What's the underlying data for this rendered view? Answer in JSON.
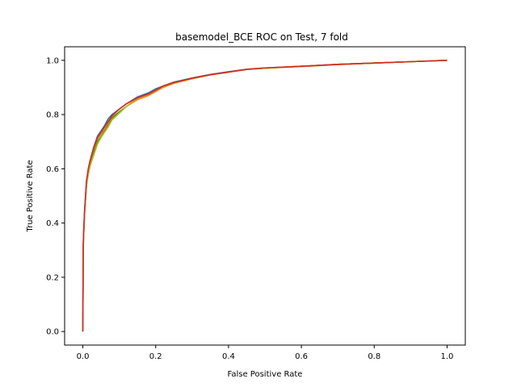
{
  "chart_data": {
    "type": "line",
    "title": "basemodel_BCE ROC on Test, 7 fold",
    "xlabel": "False Positive Rate",
    "ylabel": "True Positive Rate",
    "xlim": [
      -0.05,
      1.05
    ],
    "ylim": [
      -0.05,
      1.05
    ],
    "xticks": [
      0.0,
      0.2,
      0.4,
      0.6,
      0.8,
      1.0
    ],
    "yticks": [
      0.0,
      0.2,
      0.4,
      0.6,
      0.8,
      1.0
    ],
    "xtick_labels": [
      "0.0",
      "0.2",
      "0.4",
      "0.6",
      "0.8",
      "1.0"
    ],
    "ytick_labels": [
      "0.0",
      "0.2",
      "0.4",
      "0.6",
      "0.8",
      "1.0"
    ],
    "grid": false,
    "series": [
      {
        "color": "#1f77b4",
        "x": [
          0,
          0.001,
          0.002,
          0.005,
          0.01,
          0.015,
          0.02,
          0.03,
          0.04,
          0.05,
          0.06,
          0.07,
          0.08,
          0.1,
          0.12,
          0.15,
          0.18,
          0.2,
          0.22,
          0.25,
          0.3,
          0.35,
          0.4,
          0.45,
          0.5,
          0.6,
          0.7,
          0.8,
          0.9,
          1.0
        ],
        "y": [
          0,
          0.31,
          0.36,
          0.45,
          0.55,
          0.6,
          0.63,
          0.68,
          0.72,
          0.74,
          0.76,
          0.785,
          0.8,
          0.82,
          0.84,
          0.865,
          0.88,
          0.895,
          0.905,
          0.92,
          0.935,
          0.948,
          0.958,
          0.967,
          0.972,
          0.978,
          0.985,
          0.99,
          0.995,
          1.0
        ]
      },
      {
        "color": "#ff7f0e",
        "x": [
          0,
          0.001,
          0.002,
          0.005,
          0.01,
          0.015,
          0.02,
          0.03,
          0.04,
          0.05,
          0.06,
          0.07,
          0.08,
          0.1,
          0.12,
          0.15,
          0.18,
          0.2,
          0.22,
          0.25,
          0.3,
          0.35,
          0.4,
          0.45,
          0.5,
          0.6,
          0.7,
          0.8,
          0.9,
          1.0
        ],
        "y": [
          0,
          0.3,
          0.35,
          0.44,
          0.54,
          0.59,
          0.62,
          0.67,
          0.71,
          0.73,
          0.745,
          0.77,
          0.79,
          0.81,
          0.83,
          0.855,
          0.87,
          0.885,
          0.9,
          0.915,
          0.932,
          0.946,
          0.956,
          0.966,
          0.971,
          0.977,
          0.984,
          0.99,
          0.995,
          1.0
        ]
      },
      {
        "color": "#2ca02c",
        "x": [
          0,
          0.001,
          0.002,
          0.005,
          0.01,
          0.015,
          0.02,
          0.03,
          0.04,
          0.05,
          0.06,
          0.07,
          0.08,
          0.1,
          0.12,
          0.15,
          0.18,
          0.2,
          0.22,
          0.25,
          0.3,
          0.35,
          0.4,
          0.45,
          0.5,
          0.6,
          0.7,
          0.8,
          0.9,
          1.0
        ],
        "y": [
          0,
          0.29,
          0.35,
          0.44,
          0.54,
          0.58,
          0.61,
          0.66,
          0.7,
          0.72,
          0.74,
          0.76,
          0.785,
          0.81,
          0.83,
          0.86,
          0.875,
          0.89,
          0.905,
          0.918,
          0.934,
          0.947,
          0.957,
          0.966,
          0.971,
          0.978,
          0.985,
          0.99,
          0.995,
          1.0
        ]
      },
      {
        "color": "#bcbd22",
        "x": [
          0,
          0.001,
          0.002,
          0.005,
          0.01,
          0.015,
          0.02,
          0.03,
          0.04,
          0.05,
          0.06,
          0.07,
          0.08,
          0.1,
          0.12,
          0.15,
          0.18,
          0.2,
          0.22,
          0.25,
          0.3,
          0.35,
          0.4,
          0.45,
          0.5,
          0.6,
          0.7,
          0.8,
          0.9,
          1.0
        ],
        "y": [
          0,
          0.3,
          0.35,
          0.44,
          0.54,
          0.58,
          0.61,
          0.65,
          0.69,
          0.715,
          0.735,
          0.755,
          0.78,
          0.805,
          0.83,
          0.86,
          0.875,
          0.89,
          0.905,
          0.918,
          0.934,
          0.947,
          0.957,
          0.966,
          0.971,
          0.978,
          0.985,
          0.99,
          0.995,
          1.0
        ]
      },
      {
        "color": "#d62728",
        "x": [
          0,
          0.001,
          0.002,
          0.005,
          0.01,
          0.015,
          0.02,
          0.03,
          0.04,
          0.05,
          0.06,
          0.07,
          0.08,
          0.1,
          0.12,
          0.15,
          0.18,
          0.2,
          0.22,
          0.25,
          0.3,
          0.35,
          0.4,
          0.45,
          0.5,
          0.6,
          0.7,
          0.8,
          0.9,
          1.0
        ],
        "y": [
          0,
          0.31,
          0.36,
          0.45,
          0.555,
          0.6,
          0.63,
          0.68,
          0.715,
          0.735,
          0.755,
          0.775,
          0.795,
          0.82,
          0.84,
          0.862,
          0.876,
          0.89,
          0.905,
          0.918,
          0.934,
          0.947,
          0.957,
          0.967,
          0.972,
          0.978,
          0.985,
          0.99,
          0.995,
          1.0
        ]
      }
    ]
  }
}
